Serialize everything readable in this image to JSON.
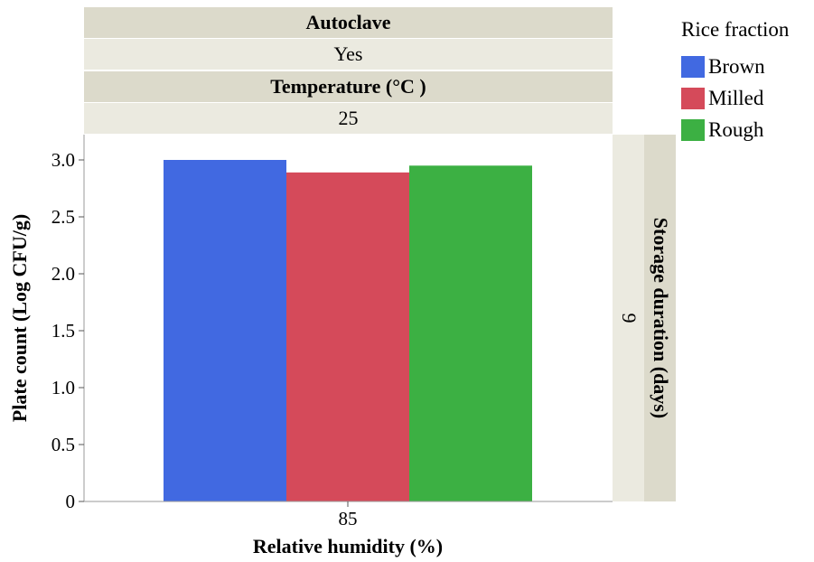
{
  "panel_headers": {
    "autoclave_label": "Autoclave",
    "autoclave_value": "Yes",
    "temperature_label": "Temperature (°C )",
    "temperature_value": "25"
  },
  "side_strip": {
    "label": "Storage duration (days)",
    "value": "9"
  },
  "legend": {
    "title": "Rice fraction",
    "items": [
      {
        "label": "Brown",
        "color": "#4169e1"
      },
      {
        "label": "Milled",
        "color": "#d54a5a"
      },
      {
        "label": "Rough",
        "color": "#3cb043"
      }
    ]
  },
  "chart_data": {
    "type": "bar",
    "xlabel": "Relative humidity (%)",
    "ylabel": "Plate count (Log CFU/g)",
    "categories": [
      "85"
    ],
    "series": [
      {
        "name": "Brown",
        "values": [
          3.0
        ]
      },
      {
        "name": "Milled",
        "values": [
          2.89
        ]
      },
      {
        "name": "Rough",
        "values": [
          2.95
        ]
      }
    ],
    "ylim": [
      0,
      3.2
    ],
    "yticks": [
      "0",
      "0.5",
      "1.0",
      "1.5",
      "2.0",
      "2.5",
      "3.0"
    ],
    "ytick_values": [
      0,
      0.5,
      1.0,
      1.5,
      2.0,
      2.5,
      3.0
    ],
    "grid": false,
    "legend_position": "top-right"
  }
}
